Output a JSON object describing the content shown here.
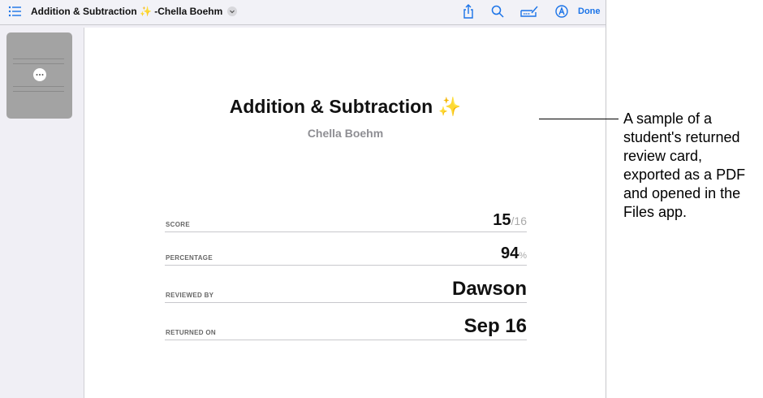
{
  "toolbar": {
    "title": "Addition & Subtraction ✨ -Chella Boehm",
    "done_label": "Done",
    "icons": [
      "list-icon",
      "chevron-down-icon",
      "share-icon",
      "search-icon",
      "signature-icon",
      "markup-icon"
    ]
  },
  "thumbnail": {
    "more_icon": "ellipsis-icon"
  },
  "document": {
    "title": "Addition & Subtraction ✨",
    "student": "Chella Boehm",
    "rows": [
      {
        "label": "SCORE",
        "value": "15",
        "suffix": "/16"
      },
      {
        "label": "PERCENTAGE",
        "value": "94",
        "suffix": "%"
      },
      {
        "label": "REVIEWED BY",
        "value": "Dawson",
        "suffix": ""
      },
      {
        "label": "RETURNED ON",
        "value": "Sep 16",
        "suffix": ""
      }
    ]
  },
  "caption": "A sample of a student's returned review card, exported as a PDF and opened in the Files app.",
  "colors": {
    "accent": "#1a73e8"
  }
}
